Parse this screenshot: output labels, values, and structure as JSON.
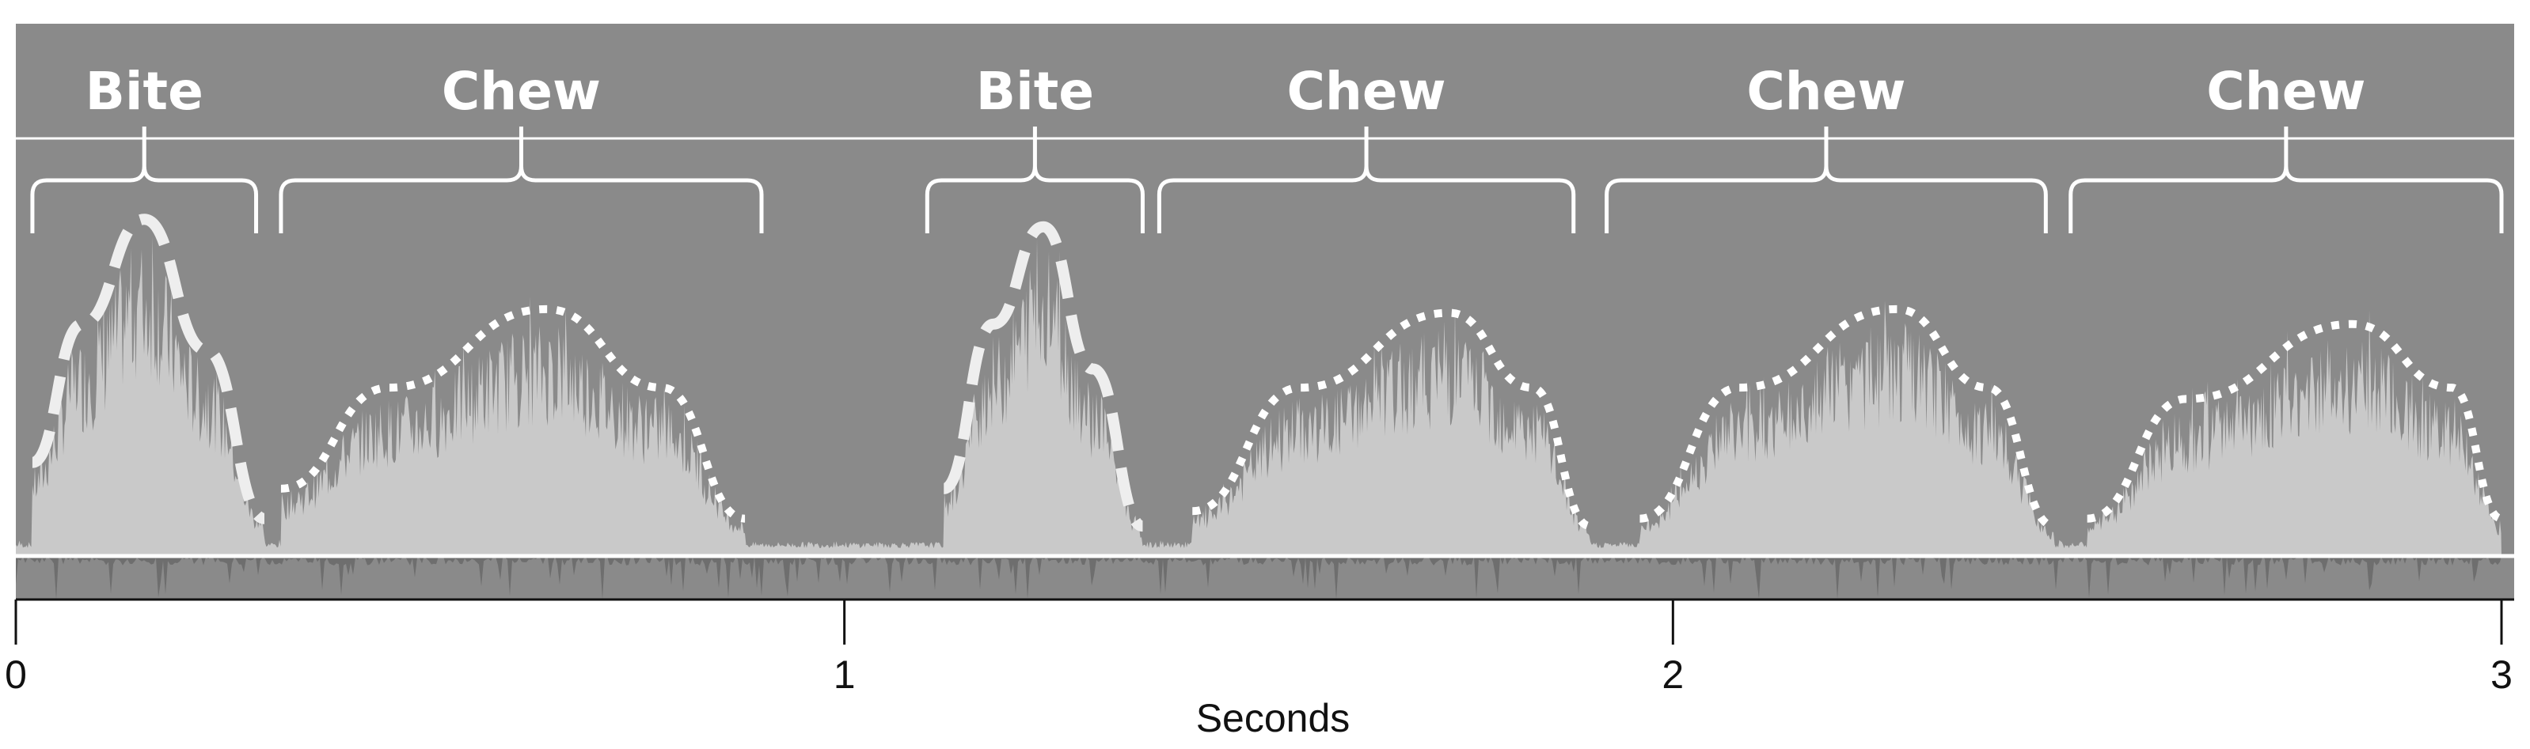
{
  "chart_data": {
    "type": "area",
    "title": "",
    "xlabel": "Seconds",
    "ylabel": "",
    "xlim": [
      0,
      3
    ],
    "ylim": [
      0,
      1
    ],
    "grid": false,
    "x_ticks": [
      "0",
      "1",
      "2",
      "3"
    ],
    "segments": [
      {
        "label": "Bite",
        "start": 0.02,
        "end": 0.29,
        "shape": "dashed"
      },
      {
        "label": "Chew",
        "start": 0.32,
        "end": 0.9,
        "shape": "dotted"
      },
      {
        "label": "Bite",
        "start": 1.1,
        "end": 1.36,
        "shape": "dashed"
      },
      {
        "label": "Chew",
        "start": 1.38,
        "end": 1.88,
        "shape": "dotted"
      },
      {
        "label": "Chew",
        "start": 1.92,
        "end": 2.45,
        "shape": "dotted"
      },
      {
        "label": "Chew",
        "start": 2.48,
        "end": 3.0,
        "shape": "dotted"
      }
    ],
    "envelope_peaks": [
      {
        "x": [
          0.02,
          0.08,
          0.155,
          0.23,
          0.3
        ],
        "y": [
          0.25,
          0.62,
          0.9,
          0.55,
          0.1
        ],
        "style": "dashed"
      },
      {
        "x": [
          0.32,
          0.45,
          0.64,
          0.78,
          0.88
        ],
        "y": [
          0.18,
          0.45,
          0.66,
          0.45,
          0.1
        ],
        "style": "dotted"
      },
      {
        "x": [
          1.12,
          1.18,
          1.24,
          1.3,
          1.36
        ],
        "y": [
          0.18,
          0.62,
          0.88,
          0.5,
          0.08
        ],
        "style": "dashed"
      },
      {
        "x": [
          1.42,
          1.55,
          1.73,
          1.83,
          1.9
        ],
        "y": [
          0.12,
          0.45,
          0.65,
          0.45,
          0.08
        ],
        "style": "dotted"
      },
      {
        "x": [
          1.96,
          2.08,
          2.27,
          2.38,
          2.46
        ],
        "y": [
          0.1,
          0.45,
          0.66,
          0.45,
          0.08
        ],
        "style": "dotted"
      },
      {
        "x": [
          2.5,
          2.62,
          2.82,
          2.94,
          3.0
        ],
        "y": [
          0.1,
          0.42,
          0.62,
          0.45,
          0.1
        ],
        "style": "dotted"
      }
    ],
    "colors": {
      "background": "#8a8a8a",
      "signal": "#c9c9c9",
      "lines": "#ffffff",
      "axis": "#111111"
    }
  }
}
